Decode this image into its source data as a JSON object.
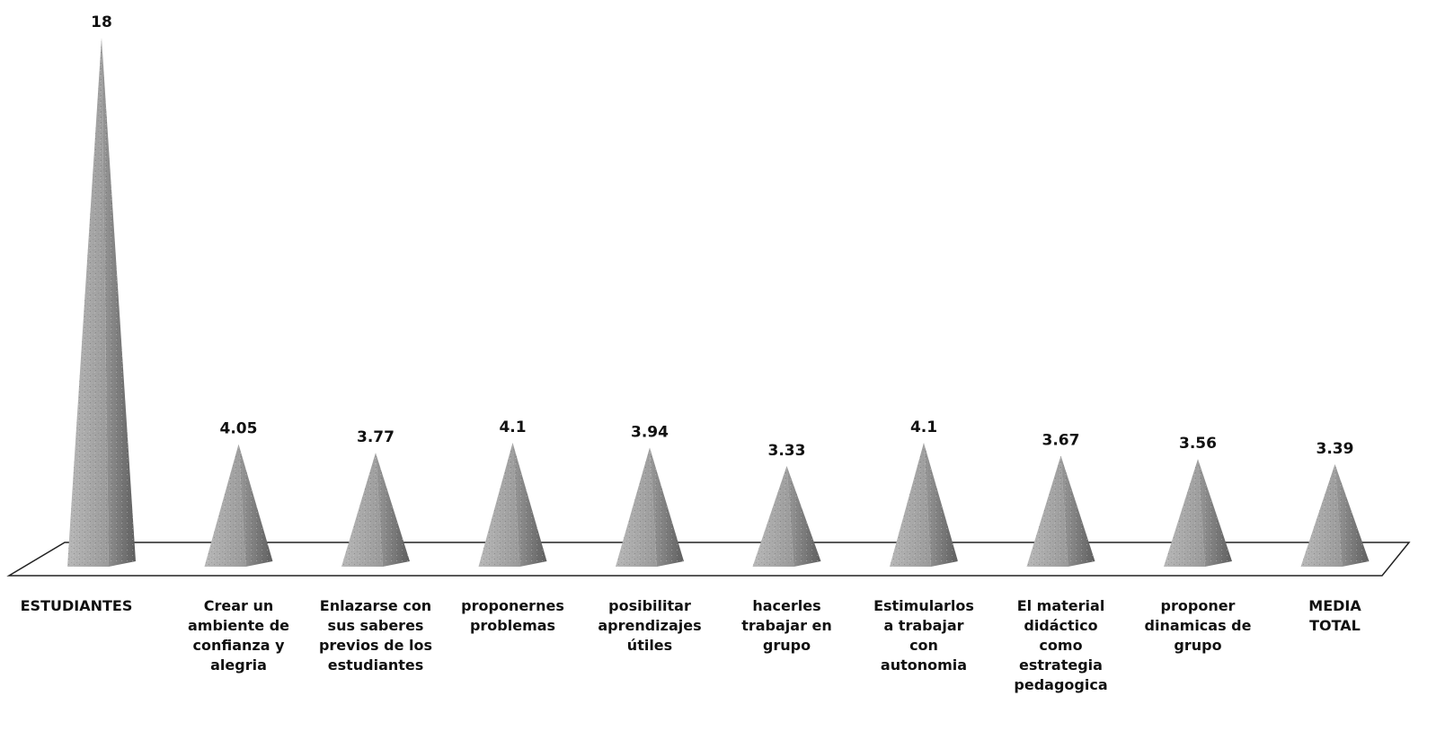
{
  "chart_data": {
    "type": "bar",
    "categories": [
      "ESTUDIANTES",
      "Crear un\nambiente de\nconfianza y\nalegria",
      "Enlazarse con\nsus saberes\nprevios de los\nestudiantes",
      "proponernes\nproblemas",
      "posibilitar\naprendizajes\nútiles",
      "hacerles\ntrabajar en\ngrupo",
      "Estimularlos\na trabajar\ncon\nautonomia",
      "El material\ndidáctico\ncomo\nestrategia\npedagogica",
      "proponer\ndinamicas de\ngrupo",
      "MEDIA\nTOTAL"
    ],
    "values": [
      18,
      4.05,
      3.77,
      4.1,
      3.94,
      3.33,
      4.1,
      3.67,
      3.56,
      3.39
    ],
    "value_labels": [
      "18",
      "4.05",
      "3.77",
      "4.1",
      "3.94",
      "3.33",
      "4.1",
      "3.67",
      "3.56",
      "3.39"
    ],
    "bar_shape": "pyramid",
    "style": "3d",
    "grid": false,
    "legend": "none",
    "colors": {
      "pyramid_light": "#b8b8b8",
      "pyramid_mid": "#9a9a9a",
      "pyramid_dark": "#5e5e5e",
      "floor": "#ffffff",
      "floor_edge": "#222222"
    }
  }
}
